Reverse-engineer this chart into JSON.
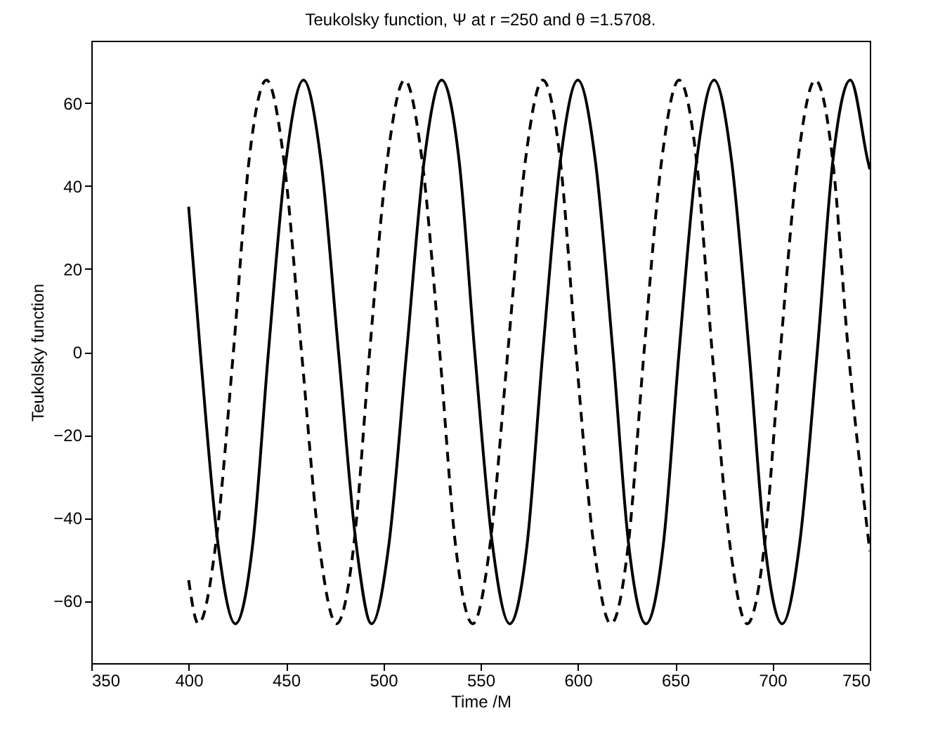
{
  "chart_data": {
    "type": "line",
    "title": "Teukolsky function, Ψ at r =250 and θ =1.5708.",
    "xlabel": "Time /M",
    "ylabel": "Teukolsky function",
    "xlim": [
      350,
      750
    ],
    "xticks": [
      350,
      400,
      450,
      500,
      550,
      600,
      650,
      700,
      750
    ],
    "ylim": [
      -75,
      75
    ],
    "yticks": [
      -60,
      -40,
      -20,
      0,
      20,
      40,
      60
    ],
    "grid": false,
    "series": [
      {
        "color": "#000000",
        "line_style": "solid",
        "x": [
          400,
          406,
          415,
          424,
          433,
          441,
          450,
          459,
          468,
          477,
          486,
          494,
          503,
          512,
          521,
          530,
          539,
          547,
          556,
          565,
          574,
          582,
          591,
          600,
          609,
          618,
          626,
          635,
          644,
          652,
          661,
          670,
          679,
          688,
          696,
          705,
          714,
          723,
          731,
          740,
          749,
          750
        ],
        "values": [
          35,
          0,
          -46,
          -65.5,
          -46,
          0,
          46,
          65.5,
          46,
          0,
          -46,
          -65.5,
          -46,
          0,
          46,
          65.5,
          46,
          0,
          -46,
          -65.5,
          -46,
          0,
          46,
          65.5,
          46,
          0,
          -46,
          -65.5,
          -46,
          0,
          46,
          65.5,
          46,
          0,
          -46,
          -65.5,
          -46,
          0,
          46,
          65.5,
          46,
          44
        ]
      },
      {
        "color": "#000000",
        "line_style": "dashed",
        "x": [
          400,
          405,
          414,
          423,
          431,
          440,
          449,
          458,
          467,
          476,
          485,
          493,
          502,
          511,
          520,
          529,
          537,
          546,
          555,
          564,
          573,
          582,
          591,
          599,
          608,
          617,
          626,
          634,
          643,
          652,
          661,
          669,
          678,
          687,
          696,
          704,
          713,
          722,
          731,
          739,
          748,
          750
        ],
        "values": [
          -55,
          -65.5,
          -46,
          0,
          46,
          65.5,
          46,
          0,
          -46,
          -65.5,
          -46,
          0,
          46,
          65.5,
          46,
          0,
          -46,
          -65.5,
          -46,
          0,
          46,
          65.5,
          46,
          0,
          -46,
          -65.5,
          -46,
          0,
          46,
          65.5,
          46,
          0,
          -46,
          -65.5,
          -46,
          0,
          46,
          65.5,
          46,
          0,
          -40,
          -48
        ]
      }
    ]
  }
}
